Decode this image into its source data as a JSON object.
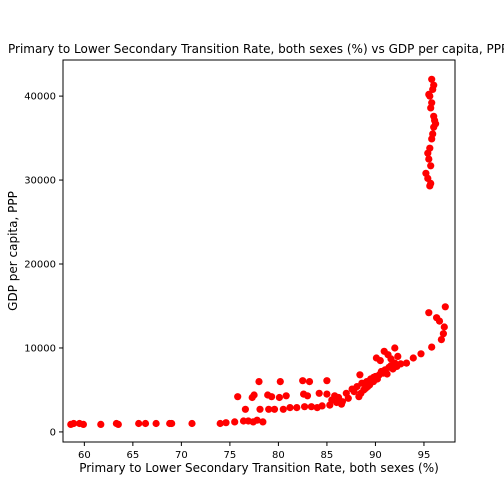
{
  "chart_data": {
    "type": "scatter",
    "title": "Primary to Lower Secondary Transition Rate, both sexes (%) vs GDP per capita, PPP",
    "xlabel": "Primary to Lower Secondary Transition Rate, both sexes (%)",
    "ylabel": "GDP per capita, PPP",
    "xlim": [
      57.8,
      98.2
    ],
    "ylim": [
      -1200,
      44300
    ],
    "xticks": [
      60,
      65,
      70,
      75,
      80,
      85,
      90,
      95
    ],
    "yticks": [
      0,
      10000,
      20000,
      30000,
      40000
    ],
    "grid": false,
    "legend": "none",
    "marker_color": "#ff0000",
    "series": [
      {
        "points": [
          [
            58.6,
            900
          ],
          [
            58.9,
            1000
          ],
          [
            59.5,
            1000
          ],
          [
            59.9,
            900
          ],
          [
            61.7,
            900
          ],
          [
            63.3,
            1000
          ],
          [
            63.5,
            900
          ],
          [
            65.6,
            1000
          ],
          [
            66.3,
            1000
          ],
          [
            67.4,
            1000
          ],
          [
            68.8,
            1000
          ],
          [
            69.0,
            1000
          ],
          [
            71.1,
            1000
          ],
          [
            74.0,
            1000
          ],
          [
            74.6,
            1100
          ],
          [
            75.5,
            1200
          ],
          [
            76.4,
            1300
          ],
          [
            76.9,
            1300
          ],
          [
            77.4,
            1200
          ],
          [
            77.8,
            1400
          ],
          [
            78.4,
            1200
          ],
          [
            75.8,
            4200
          ],
          [
            77.3,
            4100
          ],
          [
            77.5,
            4400
          ],
          [
            78.0,
            6000
          ],
          [
            78.9,
            4400
          ],
          [
            79.3,
            4200
          ],
          [
            80.1,
            4100
          ],
          [
            80.2,
            6000
          ],
          [
            80.8,
            4300
          ],
          [
            82.5,
            6100
          ],
          [
            83.2,
            6000
          ],
          [
            85.0,
            6100
          ],
          [
            76.6,
            2700
          ],
          [
            78.1,
            2700
          ],
          [
            79.0,
            2700
          ],
          [
            79.6,
            2700
          ],
          [
            80.5,
            2700
          ],
          [
            81.2,
            2900
          ],
          [
            81.9,
            2900
          ],
          [
            82.7,
            3000
          ],
          [
            83.4,
            3000
          ],
          [
            84.0,
            2900
          ],
          [
            84.5,
            3100
          ],
          [
            85.3,
            3200
          ],
          [
            82.6,
            4500
          ],
          [
            83.0,
            4300
          ],
          [
            84.2,
            4600
          ],
          [
            85.0,
            4500
          ],
          [
            85.8,
            4300
          ],
          [
            86.2,
            4100
          ],
          [
            86.6,
            3600
          ],
          [
            87.2,
            4000
          ],
          [
            87.8,
            4800
          ],
          [
            88.3,
            4200
          ],
          [
            88.5,
            4600
          ],
          [
            88.8,
            5000
          ],
          [
            89.0,
            5200
          ],
          [
            89.2,
            5400
          ],
          [
            89.4,
            5600
          ],
          [
            85.5,
            3800
          ],
          [
            86.0,
            3500
          ],
          [
            86.5,
            3300
          ],
          [
            87.0,
            4600
          ],
          [
            87.6,
            5100
          ],
          [
            88.1,
            5400
          ],
          [
            88.6,
            5800
          ],
          [
            88.4,
            6800
          ],
          [
            89.1,
            6000
          ],
          [
            89.5,
            6300
          ],
          [
            89.8,
            6000
          ],
          [
            90.0,
            6600
          ],
          [
            90.2,
            6300
          ],
          [
            90.4,
            6800
          ],
          [
            90.6,
            7200
          ],
          [
            90.8,
            7000
          ],
          [
            91.0,
            7400
          ],
          [
            91.2,
            6900
          ],
          [
            91.4,
            7700
          ],
          [
            91.6,
            7900
          ],
          [
            91.8,
            7500
          ],
          [
            92.0,
            8200
          ],
          [
            92.2,
            7800
          ],
          [
            92.6,
            8100
          ],
          [
            93.2,
            8200
          ],
          [
            93.9,
            8800
          ],
          [
            94.7,
            9300
          ],
          [
            95.8,
            10100
          ],
          [
            89.8,
            6500
          ],
          [
            90.1,
            8800
          ],
          [
            90.5,
            8500
          ],
          [
            90.9,
            9600
          ],
          [
            91.3,
            9200
          ],
          [
            91.6,
            8700
          ],
          [
            92.3,
            9000
          ],
          [
            92.0,
            10000
          ],
          [
            95.5,
            14200
          ],
          [
            96.3,
            13600
          ],
          [
            96.6,
            13200
          ],
          [
            96.8,
            11000
          ],
          [
            97.0,
            11700
          ],
          [
            97.1,
            12500
          ],
          [
            97.2,
            14900
          ],
          [
            95.2,
            30800
          ],
          [
            95.4,
            30200
          ],
          [
            95.6,
            29300
          ],
          [
            95.7,
            29600
          ],
          [
            95.4,
            33200
          ],
          [
            95.5,
            32500
          ],
          [
            95.6,
            33800
          ],
          [
            95.7,
            31700
          ],
          [
            95.8,
            34900
          ],
          [
            95.9,
            35500
          ],
          [
            96.0,
            36300
          ],
          [
            96.1,
            37100
          ],
          [
            96.2,
            36700
          ],
          [
            96.0,
            37600
          ],
          [
            95.7,
            38600
          ],
          [
            95.8,
            39200
          ],
          [
            95.5,
            40200
          ],
          [
            95.6,
            40000
          ],
          [
            95.9,
            40800
          ],
          [
            96.0,
            41300
          ],
          [
            95.8,
            42000
          ]
        ]
      }
    ]
  }
}
